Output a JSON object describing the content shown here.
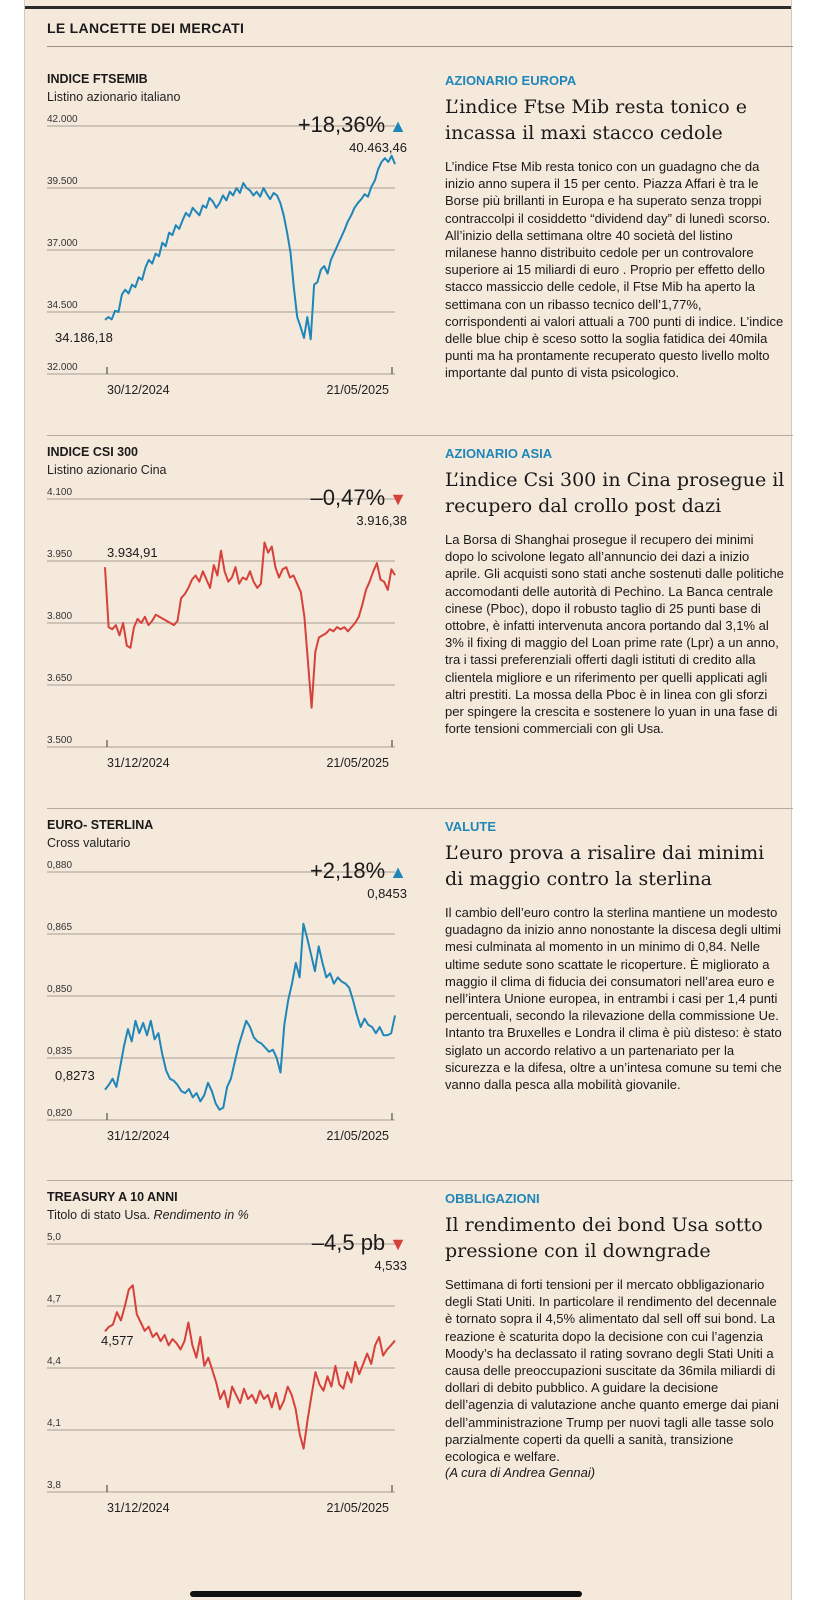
{
  "page": {
    "title": "LE LANCETTE DEI MERCATI"
  },
  "sections": [
    {
      "chart_title": "INDICE FTSEMIB",
      "chart_subtitle": "Listino azionario italiano",
      "subtitle_italic": "",
      "change": "+18,36%",
      "direction": "up",
      "last_value": "40.463,46",
      "start_label": "34.186,18",
      "rubric": "AZIONARIO EUROPA",
      "headline": "L’indice Ftse Mib resta tonico e incassa il maxi stacco cedole",
      "body": "L’indice Ftse Mib resta tonico con un guadagno che da inizio anno supera il 15 per cento. Piazza Affari è tra le Borse più brillanti in Europa e ha superato senza troppi contraccolpi il cosiddetto “dividend day” di lunedì scorso. All’inizio della settimana oltre 40 società del listino milanese hanno distribuito cedole per un controvalore superiore ai 15 miliardi di euro . Proprio per effetto dello stacco massiccio delle cedole, il Ftse Mib ha aperto la settimana con un ribasso tecnico dell’1,77%, corrispondenti ai valori attuali a 700 punti di indice. L’indice delle blue chip è sceso sotto la soglia fatidica dei 40mila punti ma ha prontamente recuperato questo livello molto importante dal punto di vista psicologico.",
      "signature": ""
    },
    {
      "chart_title": "INDICE CSI 300",
      "chart_subtitle": "Listino azionario Cina",
      "subtitle_italic": "",
      "change": "–0,47%",
      "direction": "down",
      "last_value": "3.916,38",
      "start_label": "3.934,91",
      "rubric": "AZIONARIO ASIA",
      "headline": "L’indice Csi 300 in Cina prosegue il recupero dal crollo post dazi",
      "body": "La Borsa di Shanghai prosegue il recupero dei minimi dopo lo scivolone legato all’annuncio dei dazi a inizio aprile. Gli acquisti sono stati anche sostenuti dalle politiche accomodanti delle autorità di Pechino. La Banca centrale cinese (Pboc), dopo il robusto taglio di 25 punti base di ottobre, è infatti intervenuta ancora portando dal 3,1% al 3% il fixing di maggio del Loan prime rate (Lpr) a un anno, tra i tassi preferenziali offerti dagli istituti di credito alla clientela migliore e un riferimento per quelli applicati agli altri prestiti. La mossa della Pboc è in linea con gli sforzi per spingere la crescita e sostenere lo yuan in una fase di forte tensioni commerciali con gli Usa.",
      "signature": ""
    },
    {
      "chart_title": "EURO- STERLINA",
      "chart_subtitle": "Cross valutario",
      "subtitle_italic": "",
      "change": "+2,18%",
      "direction": "up",
      "last_value": "0,8453",
      "start_label": "0,8273",
      "rubric": "VALUTE",
      "headline": "L’euro prova a risalire dai minimi di maggio contro la sterlina",
      "body": "Il cambio dell’euro contro la sterlina mantiene un modesto guadagno da inizio anno nonostante la discesa degli ultimi mesi culminata al momento in un minimo di 0,84. Nelle ultime sedute sono scattate le ricoperture. È migliorato a maggio il clima di fiducia dei consumatori nell’area euro e nell’intera Unione europea, in entrambi i casi per 1,4 punti percentuali, secondo la rilevazione della commissione Ue. Intanto tra Bruxelles e Londra il clima è più disteso: è stato siglato un accordo relativo a un partenariato per la sicurezza e la difesa, oltre a un’intesa comune su temi che vanno dalla pesca alla mobilità giovanile.",
      "signature": ""
    },
    {
      "chart_title": "TREASURY A 10 ANNI",
      "chart_subtitle": "Titolo di stato Usa.",
      "subtitle_italic": "Rendimento in %",
      "change": "–4,5 pb",
      "direction": "down",
      "last_value": "4,533",
      "start_label": "4,577",
      "rubric": "OBBLIGAZIONI",
      "headline": "Il rendimento dei bond Usa sotto pressione con il downgrade",
      "body": "Settimana di forti tensioni per il mercato obbligazionario degli Stati Uniti. In particolare il rendimento del decennale è tornato sopra il 4,5% alimentato dal sell off sui bond. La reazione è scaturita dopo la decisione con cui l’agenzia Moody’s ha declassato il rating sovrano degli Stati Uniti a causa delle preoccupazioni suscitate da 36mila miliardi di dollari di debito pubblico. A guidare la decisione dell’agenzia di valutazione anche quanto emerge dai piani dell’amministrazione Trump per nuovi tagli alle tasse solo parzialmente coperti da quelli a sanità, transizione ecologica e welfare.",
      "signature": "(A cura di Andrea Gennai)"
    }
  ],
  "colors": {
    "up": "#1f86b9",
    "down": "#d6413a",
    "accent": "#1f86b9"
  },
  "chart_data": [
    {
      "type": "line",
      "title": "INDICE FTSEMIB",
      "ylim": [
        32000,
        42000
      ],
      "yticks": [
        32000,
        34500,
        37000,
        39500,
        42000
      ],
      "ytick_labels": [
        "32.000",
        "34.500",
        "37.000",
        "39.500",
        "42.000"
      ],
      "xtick_labels": [
        "30/12/2024",
        "21/05/2025"
      ],
      "color": "#1f86b9",
      "series": [
        {
          "name": "FTSE MIB",
          "values": [
            34186,
            34300,
            34200,
            34550,
            34500,
            35200,
            35400,
            35250,
            35600,
            35500,
            35900,
            35800,
            36300,
            36600,
            36450,
            36850,
            36750,
            37300,
            37150,
            37700,
            37600,
            38000,
            37850,
            38200,
            38500,
            38350,
            38700,
            38550,
            38400,
            38800,
            38700,
            39100,
            38950,
            38700,
            38900,
            39200,
            39000,
            39350,
            39200,
            39500,
            39300,
            39700,
            39500,
            39400,
            39200,
            39350,
            39150,
            39500,
            39250,
            39050,
            39300,
            39200,
            38900,
            38400,
            37700,
            36900,
            35500,
            34300,
            33900,
            33450,
            34300,
            33400,
            35600,
            35700,
            36200,
            36350,
            36050,
            36600,
            36900,
            37200,
            37500,
            37800,
            38150,
            38400,
            38700,
            38900,
            39050,
            39250,
            39150,
            39550,
            39800,
            40250,
            40550,
            40700,
            40550,
            40800,
            40463
          ]
        }
      ]
    },
    {
      "type": "line",
      "title": "INDICE CSI 300",
      "ylim": [
        3500,
        4100
      ],
      "yticks": [
        3500,
        3650,
        3800,
        3950,
        4100
      ],
      "ytick_labels": [
        "3.500",
        "3.650",
        "3.800",
        "3.950",
        "4.100"
      ],
      "xtick_labels": [
        "31/12/2024",
        "21/05/2025"
      ],
      "color": "#d6413a",
      "series": [
        {
          "name": "CSI 300",
          "values": [
            3935,
            3790,
            3785,
            3795,
            3770,
            3800,
            3745,
            3740,
            3790,
            3810,
            3800,
            3815,
            3795,
            3805,
            3820,
            3815,
            3810,
            3805,
            3800,
            3795,
            3805,
            3860,
            3870,
            3885,
            3905,
            3915,
            3900,
            3925,
            3905,
            3885,
            3940,
            3915,
            3975,
            3925,
            3900,
            3910,
            3935,
            3895,
            3910,
            3905,
            3925,
            3900,
            3885,
            3895,
            3995,
            3970,
            3985,
            3935,
            3910,
            3930,
            3935,
            3910,
            3915,
            3895,
            3875,
            3815,
            3705,
            3595,
            3730,
            3765,
            3770,
            3775,
            3785,
            3780,
            3790,
            3785,
            3790,
            3780,
            3790,
            3800,
            3815,
            3845,
            3880,
            3900,
            3925,
            3945,
            3905,
            3900,
            3880,
            3930,
            3916
          ]
        }
      ]
    },
    {
      "type": "line",
      "title": "EURO- STERLINA",
      "ylim": [
        0.82,
        0.88
      ],
      "yticks": [
        0.82,
        0.835,
        0.85,
        0.865,
        0.88
      ],
      "ytick_labels": [
        "0,820",
        "0,835",
        "0,850",
        "0,865",
        "0,880"
      ],
      "xtick_labels": [
        "31/12/2024",
        "21/05/2025"
      ],
      "color": "#1f86b9",
      "series": [
        {
          "name": "EUR/GBP",
          "values": [
            0.8273,
            0.8285,
            0.83,
            0.828,
            0.833,
            0.838,
            0.842,
            0.839,
            0.844,
            0.841,
            0.8435,
            0.8405,
            0.844,
            0.8395,
            0.841,
            0.836,
            0.832,
            0.83,
            0.8295,
            0.8285,
            0.827,
            0.8265,
            0.8275,
            0.8255,
            0.8265,
            0.8245,
            0.826,
            0.829,
            0.827,
            0.824,
            0.8225,
            0.823,
            0.828,
            0.83,
            0.834,
            0.838,
            0.841,
            0.844,
            0.8425,
            0.84,
            0.839,
            0.8385,
            0.8375,
            0.8365,
            0.837,
            0.835,
            0.8315,
            0.843,
            0.849,
            0.853,
            0.858,
            0.8545,
            0.8675,
            0.864,
            0.86,
            0.856,
            0.862,
            0.858,
            0.8545,
            0.8555,
            0.853,
            0.8545,
            0.8535,
            0.853,
            0.852,
            0.849,
            0.8455,
            0.8425,
            0.8445,
            0.843,
            0.8425,
            0.841,
            0.8425,
            0.8405,
            0.8405,
            0.841,
            0.8453
          ]
        }
      ]
    },
    {
      "type": "line",
      "title": "TREASURY A 10 ANNI",
      "ylim": [
        3.8,
        5.0
      ],
      "yticks": [
        3.8,
        4.1,
        4.4,
        4.7,
        5.0
      ],
      "ytick_labels": [
        "3,8",
        "4,1",
        "4,4",
        "4,7",
        "5,0"
      ],
      "xtick_labels": [
        "31/12/2024",
        "21/05/2025"
      ],
      "color": "#d6413a",
      "series": [
        {
          "name": "US 10Y",
          "values": [
            4.577,
            4.6,
            4.61,
            4.67,
            4.63,
            4.7,
            4.78,
            4.8,
            4.66,
            4.62,
            4.58,
            4.6,
            4.55,
            4.57,
            4.53,
            4.56,
            4.51,
            4.54,
            4.52,
            4.49,
            4.53,
            4.62,
            4.51,
            4.45,
            4.55,
            4.41,
            4.45,
            4.39,
            4.33,
            4.25,
            4.29,
            4.21,
            4.31,
            4.27,
            4.23,
            4.3,
            4.25,
            4.27,
            4.23,
            4.29,
            4.25,
            4.27,
            4.21,
            4.28,
            4.2,
            4.24,
            4.31,
            4.27,
            4.2,
            4.08,
            4.01,
            4.15,
            4.27,
            4.38,
            4.32,
            4.29,
            4.36,
            4.31,
            4.41,
            4.32,
            4.3,
            4.38,
            4.33,
            4.43,
            4.37,
            4.42,
            4.47,
            4.42,
            4.51,
            4.55,
            4.46,
            4.49,
            4.51,
            4.533
          ]
        }
      ]
    }
  ]
}
